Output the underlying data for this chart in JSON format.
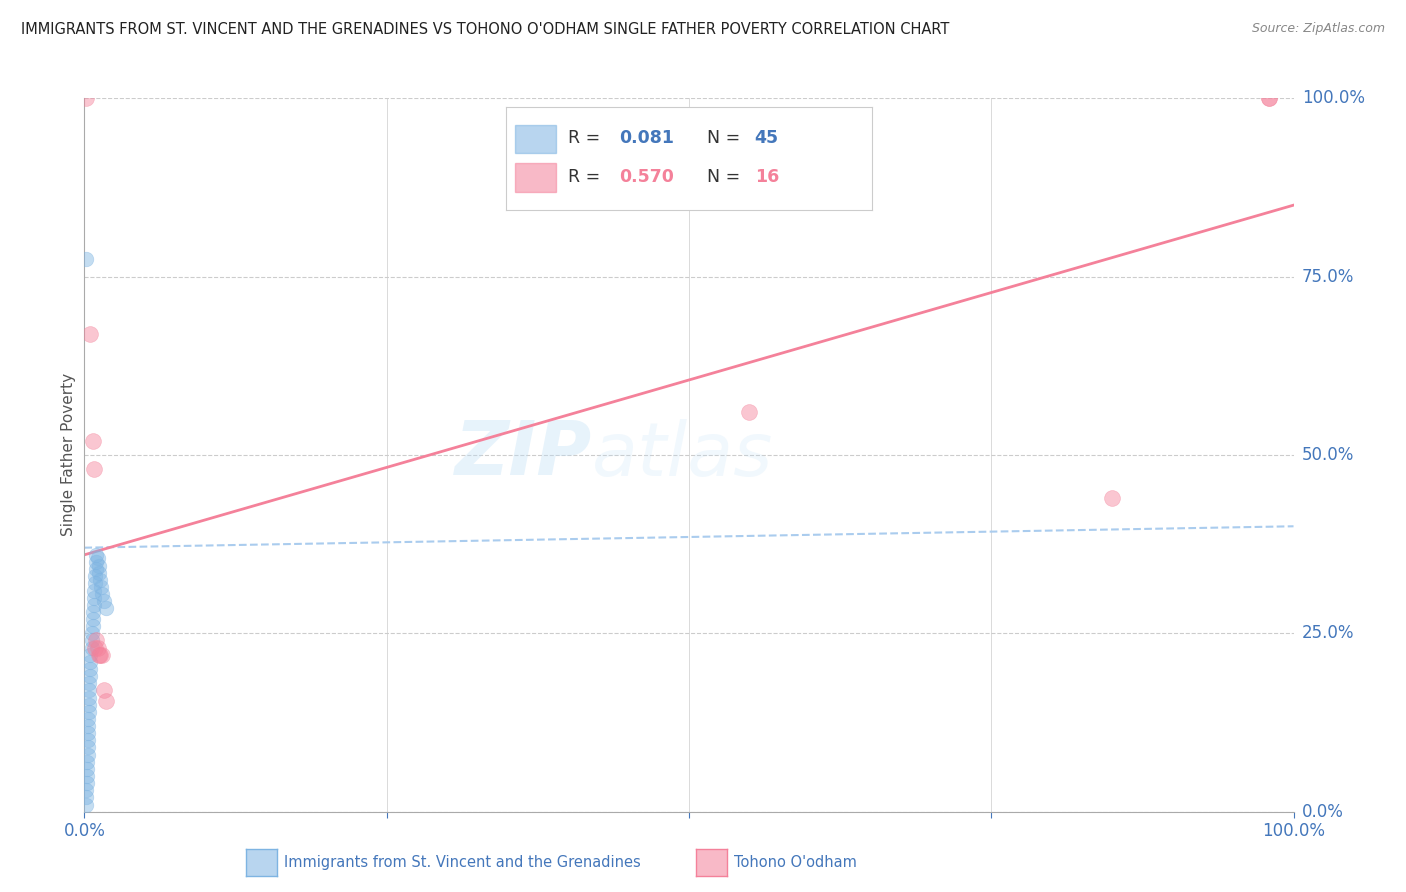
{
  "title": "IMMIGRANTS FROM ST. VINCENT AND THE GRENADINES VS TOHONO O'ODHAM SINGLE FATHER POVERTY CORRELATION CHART",
  "source": "Source: ZipAtlas.com",
  "ylabel": "Single Father Poverty",
  "ytick_labels": [
    "0.0%",
    "25.0%",
    "50.0%",
    "75.0%",
    "100.0%"
  ],
  "ytick_values": [
    0.0,
    0.25,
    0.5,
    0.75,
    1.0
  ],
  "xlim": [
    0.0,
    1.0
  ],
  "ylim": [
    0.0,
    1.0
  ],
  "legend_R1": "0.081",
  "legend_N1": "45",
  "legend_R2": "0.570",
  "legend_N2": "16",
  "color_blue": "#7EB4E2",
  "color_pink": "#F4819A",
  "color_trendline_blue": "#AACCEE",
  "color_trendline_pink": "#F4819A",
  "watermark_zip": "ZIP",
  "watermark_atlas": "atlas",
  "blue_scatter_x": [
    0.001,
    0.001,
    0.001,
    0.002,
    0.002,
    0.002,
    0.002,
    0.003,
    0.003,
    0.003,
    0.003,
    0.003,
    0.003,
    0.004,
    0.004,
    0.004,
    0.004,
    0.004,
    0.005,
    0.005,
    0.005,
    0.005,
    0.006,
    0.006,
    0.006,
    0.007,
    0.007,
    0.007,
    0.008,
    0.008,
    0.008,
    0.009,
    0.009,
    0.01,
    0.01,
    0.01,
    0.011,
    0.012,
    0.012,
    0.013,
    0.014,
    0.015,
    0.016,
    0.018,
    0.001
  ],
  "blue_scatter_y": [
    0.01,
    0.02,
    0.03,
    0.04,
    0.05,
    0.06,
    0.07,
    0.08,
    0.09,
    0.1,
    0.11,
    0.12,
    0.13,
    0.14,
    0.15,
    0.16,
    0.17,
    0.18,
    0.19,
    0.2,
    0.21,
    0.22,
    0.23,
    0.24,
    0.25,
    0.26,
    0.27,
    0.28,
    0.29,
    0.3,
    0.31,
    0.32,
    0.33,
    0.34,
    0.35,
    0.36,
    0.355,
    0.345,
    0.335,
    0.325,
    0.315,
    0.305,
    0.295,
    0.285,
    0.775
  ],
  "pink_scatter_x": [
    0.001,
    0.005,
    0.007,
    0.008,
    0.009,
    0.01,
    0.011,
    0.012,
    0.013,
    0.015,
    0.016,
    0.018,
    0.55,
    0.85,
    0.98,
    0.98
  ],
  "pink_scatter_y": [
    1.0,
    0.67,
    0.52,
    0.48,
    0.23,
    0.24,
    0.23,
    0.22,
    0.22,
    0.22,
    0.17,
    0.155,
    0.56,
    0.44,
    1.0,
    1.0
  ],
  "blue_trend_y_start": 0.37,
  "blue_trend_y_end": 0.4,
  "pink_trend_y_start": 0.36,
  "pink_trend_y_end": 0.85,
  "grid_color": "#CCCCCC",
  "title_color": "#222222",
  "tick_label_color": "#4477BB",
  "legend_label1": "Immigrants from St. Vincent and the Grenadines",
  "legend_label2": "Tohono O'odham"
}
